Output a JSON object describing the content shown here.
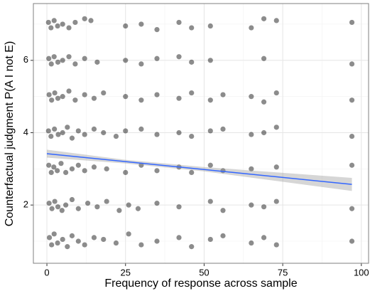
{
  "chart_data": {
    "type": "scatter",
    "x_label": "Frequency of response across sample",
    "y_label": "Counterfactual judgment P(A I not E)",
    "xlim": [
      -4.3,
      102.3
    ],
    "ylim": [
      0.39,
      7.57
    ],
    "xticks": [
      0,
      25,
      50,
      75,
      100
    ],
    "yticks": [
      2,
      4,
      6
    ],
    "x_minor": [
      12.5,
      37.5,
      62.5,
      87.5
    ],
    "y_minor": [
      1,
      3,
      5,
      7
    ],
    "grid": true,
    "color": "#000000",
    "fit_color": "#3366ff",
    "band_color": "#999999",
    "x": [
      0.8,
      1.5,
      2.3,
      3.4,
      5,
      6.5,
      8,
      10,
      12,
      15,
      18,
      22,
      26,
      30,
      35,
      42,
      46,
      52,
      56,
      65,
      69,
      73,
      97,
      0.7,
      1.6,
      2.5,
      3.5,
      4.8,
      6,
      8,
      10,
      13,
      16,
      19,
      23,
      26,
      29,
      35,
      42,
      52,
      56,
      65,
      69,
      73,
      97,
      0.6,
      1.4,
      2.2,
      3.3,
      4.5,
      6,
      8,
      10,
      12,
      15,
      19,
      25,
      30,
      35,
      42,
      46,
      52,
      56,
      65,
      73,
      97,
      0.5,
      1.3,
      2.4,
      3.6,
      5,
      6.5,
      8,
      10,
      12,
      15,
      18,
      22,
      25,
      30,
      35,
      42,
      46,
      52,
      56,
      65,
      69,
      73,
      97,
      0.7,
      1.5,
      2.5,
      3.5,
      5,
      7,
      9,
      12,
      15,
      18,
      25,
      30,
      35,
      42,
      46,
      52,
      56,
      65,
      69,
      73,
      97,
      0.6,
      1.4,
      2.3,
      3.5,
      5,
      7,
      9,
      12,
      16,
      25,
      30,
      35,
      42,
      46,
      52,
      69,
      97,
      0.5,
      1.3,
      2.3,
      3.4,
      5,
      7,
      9,
      12,
      14,
      25,
      30,
      35,
      42,
      46,
      52,
      65,
      69,
      73,
      97
    ],
    "values": [
      1.1,
      0.9,
      1.2,
      0.95,
      1.05,
      0.85,
      1.15,
      1.0,
      0.9,
      1.1,
      1.05,
      0.95,
      1.2,
      0.9,
      1.0,
      1.1,
      0.85,
      1.05,
      1.15,
      0.95,
      1.1,
      0.9,
      1.0,
      2.05,
      1.9,
      2.1,
      1.95,
      1.85,
      2.0,
      2.15,
      1.9,
      2.05,
      1.95,
      2.1,
      1.85,
      2.0,
      1.9,
      2.05,
      1.95,
      2.1,
      1.85,
      2.0,
      1.95,
      2.1,
      1.9,
      3.1,
      2.9,
      3.05,
      2.95,
      3.15,
      2.9,
      3.0,
      3.1,
      2.95,
      3.05,
      3.0,
      2.9,
      3.1,
      2.95,
      3.05,
      2.9,
      3.1,
      2.95,
      3.0,
      3.05,
      3.1,
      4.05,
      3.9,
      4.1,
      3.95,
      4.0,
      4.15,
      3.85,
      4.05,
      3.95,
      4.1,
      4.0,
      3.9,
      4.05,
      4.1,
      3.95,
      4.0,
      3.9,
      4.05,
      4.1,
      3.95,
      4.0,
      4.15,
      3.9,
      5.05,
      4.9,
      5.1,
      4.95,
      5.0,
      5.15,
      4.9,
      5.05,
      4.95,
      5.1,
      5.0,
      4.9,
      5.05,
      4.95,
      5.1,
      4.9,
      5.05,
      5.0,
      4.85,
      5.1,
      4.9,
      6.05,
      5.9,
      6.1,
      5.95,
      6.0,
      6.1,
      5.9,
      6.05,
      5.95,
      6.0,
      5.9,
      6.05,
      6.1,
      5.95,
      6.0,
      6.05,
      5.9,
      7.05,
      6.9,
      7.1,
      6.95,
      7.0,
      6.9,
      7.05,
      7.15,
      7.1,
      6.95,
      7.0,
      6.85,
      7.05,
      6.9,
      6.95,
      6.9,
      7.15,
      7.1,
      7.05
    ],
    "fit": {
      "x": [
        0,
        97
      ],
      "values": [
        3.42,
        2.57
      ]
    },
    "band": {
      "x": [
        0,
        25,
        50,
        97
      ],
      "lower": [
        3.31,
        3.15,
        2.93,
        2.39
      ],
      "upper": [
        3.53,
        3.25,
        3.05,
        2.75
      ]
    }
  }
}
